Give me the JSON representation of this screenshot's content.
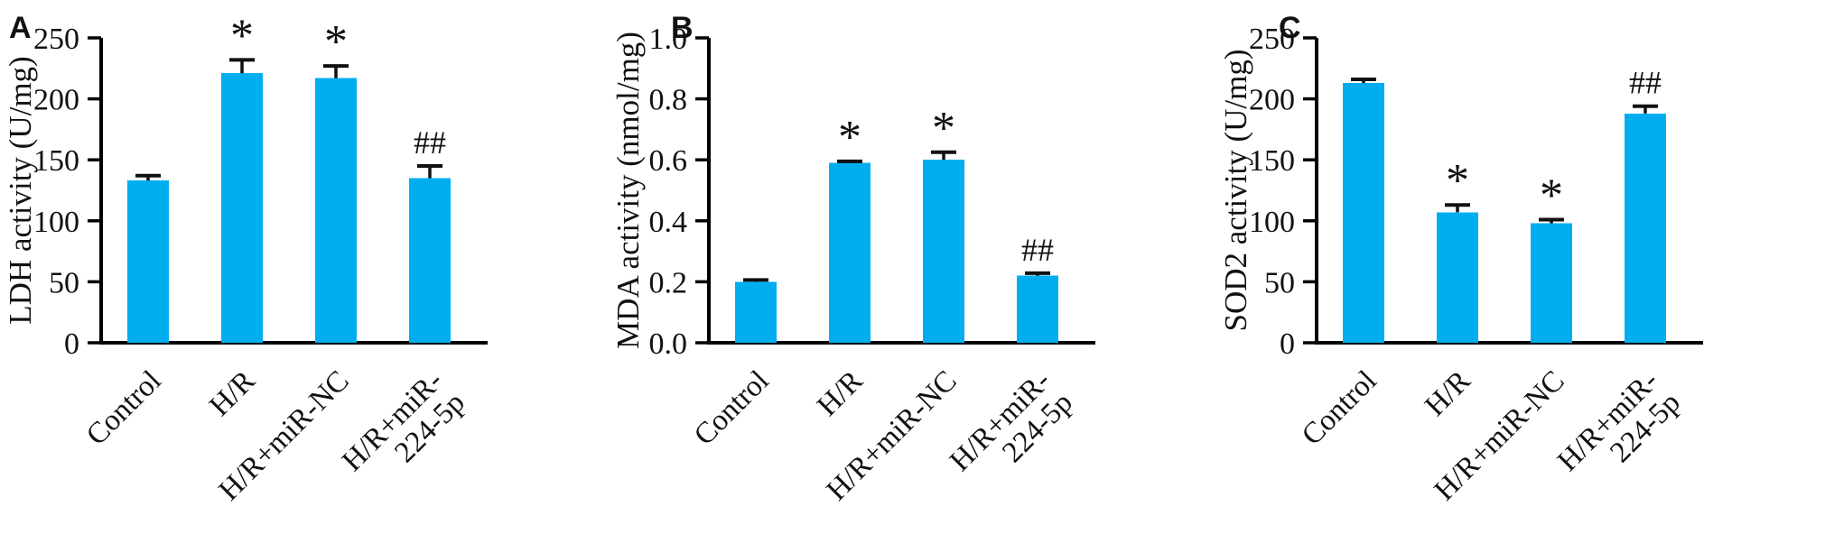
{
  "figure": {
    "background": "#ffffff",
    "bar_color": "#00AEEF",
    "axis_color": "#000000",
    "error_bar_color": "#111111",
    "text_color": "#111111"
  },
  "chart_data": [
    {
      "type": "bar",
      "panel_label": "A",
      "title": "",
      "ylabel": "LDH activity (U/mg)",
      "xlabel": "",
      "ylim": [
        0,
        250
      ],
      "yticks": [
        0,
        50,
        100,
        150,
        200,
        250
      ],
      "ytick_decimals": 0,
      "grid": false,
      "legend_position": "none",
      "categories": [
        [
          "Control"
        ],
        [
          "H/R"
        ],
        [
          "H/R+miR-NC"
        ],
        [
          "H/R+miR-",
          "224-5p"
        ]
      ],
      "values": [
        133,
        221,
        217,
        135
      ],
      "errors": [
        4,
        11,
        10,
        10
      ],
      "annotations": [
        "",
        "*",
        "*",
        "##"
      ]
    },
    {
      "type": "bar",
      "panel_label": "B",
      "title": "",
      "ylabel": "MDA activity (nmol/mg)",
      "xlabel": "",
      "ylim": [
        0,
        1.0
      ],
      "yticks": [
        0,
        0.2,
        0.4,
        0.6,
        0.8,
        1.0
      ],
      "ytick_decimals": 1,
      "grid": false,
      "legend_position": "none",
      "categories": [
        [
          "Control"
        ],
        [
          "H/R"
        ],
        [
          "H/R+miR-NC"
        ],
        [
          "H/R+miR-",
          "224-5p"
        ]
      ],
      "values": [
        0.2,
        0.59,
        0.6,
        0.22
      ],
      "errors": [
        0.006,
        0.005,
        0.025,
        0.008
      ],
      "annotations": [
        "",
        "*",
        "*",
        "##"
      ]
    },
    {
      "type": "bar",
      "panel_label": "C",
      "title": "",
      "ylabel": "SOD2 activity (U/mg)",
      "xlabel": "",
      "ylim": [
        0,
        250
      ],
      "yticks": [
        0,
        50,
        100,
        150,
        200,
        250
      ],
      "ytick_decimals": 0,
      "grid": false,
      "legend_position": "none",
      "categories": [
        [
          "Control"
        ],
        [
          "H/R"
        ],
        [
          "H/R+miR-NC"
        ],
        [
          "H/R+miR-",
          "224-5p"
        ]
      ],
      "values": [
        213,
        107,
        98,
        188
      ],
      "errors": [
        3,
        6,
        3,
        6
      ],
      "annotations": [
        "",
        "*",
        "*",
        "##"
      ]
    }
  ]
}
